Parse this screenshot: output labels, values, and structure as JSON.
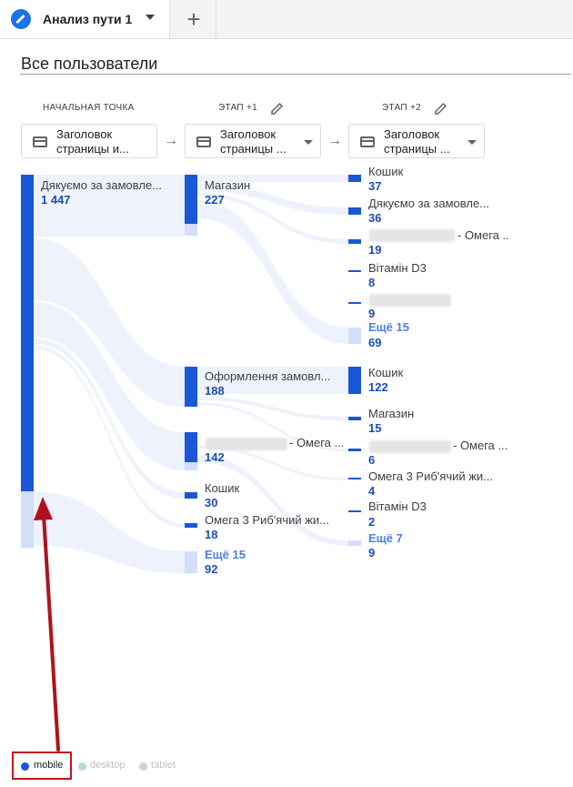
{
  "tab": {
    "title": "Анализ пути 1",
    "add_label": "+"
  },
  "segment": "Все пользователи",
  "steps": [
    {
      "header": "НАЧАЛЬНАЯ ТОЧКА",
      "dropdown": "Заголовок страницы и..."
    },
    {
      "header": "ЭТАП +1",
      "dropdown": "Заголовок страницы ..."
    },
    {
      "header": "ЭТАП +2",
      "dropdown": "Заголовок страницы ..."
    }
  ],
  "dropdown_line1": "Заголовок",
  "dropdown_line2": [
    "страницы и...",
    "страницы ...",
    "страницы ..."
  ],
  "col0": {
    "label": "Дякуємо за замовле...",
    "value": "1 447"
  },
  "col1": [
    {
      "label": "Магазин",
      "value": "227"
    },
    {
      "label": "Оформлення замовл...",
      "value": "188"
    },
    {
      "label": "- Омега ...",
      "value": "142"
    },
    {
      "label": "Кошик",
      "value": "30"
    },
    {
      "label": "Омега 3 Риб'ячий жи...",
      "value": "18"
    },
    {
      "label": "Ещё 15",
      "value": "92"
    }
  ],
  "col2": [
    {
      "label": "Кошик",
      "value": "37"
    },
    {
      "label": "Дякуємо за замовле...",
      "value": "36"
    },
    {
      "label": "- Омега ...",
      "value": "19"
    },
    {
      "label": "Вітамін D3",
      "value": "8"
    },
    {
      "label": "",
      "value": "9"
    },
    {
      "label": "Ещё 15",
      "value": "69"
    },
    {
      "label": "Кошик",
      "value": "122"
    },
    {
      "label": "Магазин",
      "value": "15"
    },
    {
      "label": "- Омега ...",
      "value": "6"
    },
    {
      "label": "Омега 3 Риб'ячий жи...",
      "value": "4"
    },
    {
      "label": "Вітамін D3",
      "value": "2"
    },
    {
      "label": "Ещё 7",
      "value": "9"
    }
  ],
  "legend": [
    "mobile",
    "desktop",
    "tablet"
  ],
  "colors": {
    "mobile": "#1a57d6",
    "desktop": "#b7e1c4",
    "tablet": "#e0c4ec",
    "annotation": "#b0121c"
  }
}
